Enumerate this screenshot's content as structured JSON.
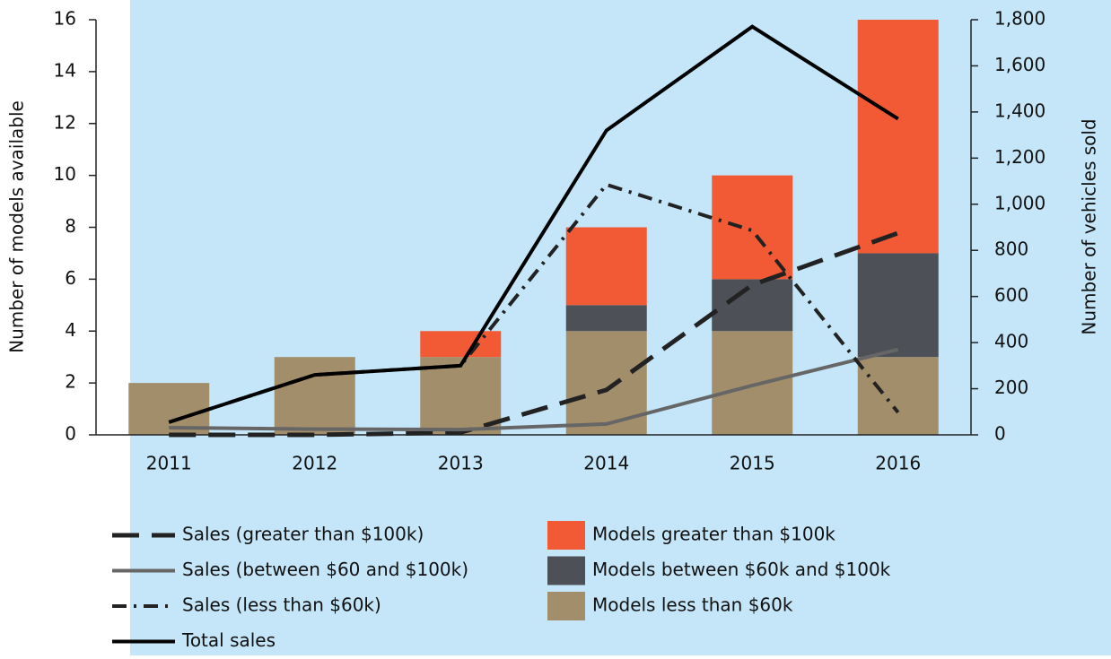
{
  "chart_data": {
    "type": "bar",
    "categories": [
      "2011",
      "2012",
      "2013",
      "2014",
      "2015",
      "2016"
    ],
    "y_label": "Number of models available",
    "y2_label": "Number of vehicles sold",
    "ylim": [
      0,
      16
    ],
    "yticks": [
      0,
      2,
      4,
      6,
      8,
      10,
      12,
      14,
      16
    ],
    "y2lim": [
      0,
      1800
    ],
    "y2ticks": [
      0,
      200,
      400,
      600,
      800,
      {
        "value": 1000,
        "label": "1,000"
      },
      {
        "value": 1200,
        "label": "1,200"
      },
      {
        "value": 1400,
        "label": "1,400"
      },
      {
        "value": 1600,
        "label": "1,600"
      },
      {
        "value": 1800,
        "label": "1,800"
      }
    ],
    "series": [
      {
        "name": "Sales (greater than $100k)",
        "type": "line",
        "axis": "y2",
        "color": "#222222",
        "dash": "dash",
        "values": [
          0,
          0,
          10,
          195,
          650,
          875
        ]
      },
      {
        "name": "Sales (between $60 and $100k)",
        "type": "line",
        "axis": "y2",
        "color": "#666666",
        "dash": "solid",
        "values": [
          31,
          25,
          23,
          47,
          214,
          370
        ]
      },
      {
        "name": "Sales (less than $60k)",
        "type": "line",
        "axis": "y2",
        "color": "#222222",
        "dash": "dashdot",
        "values": [
          55,
          260,
          300,
          1085,
          886,
          97
        ]
      },
      {
        "name": "Total sales",
        "type": "line",
        "axis": "y2",
        "color": "#000000",
        "dash": "solid",
        "values": [
          55,
          260,
          300,
          1320,
          1770,
          1370
        ]
      },
      {
        "name": "Models greater than $100k",
        "type": "bar",
        "color": "#f15a35",
        "values": [
          0,
          0,
          1,
          3,
          4,
          9
        ]
      },
      {
        "name": "Models between $60k and $100k",
        "type": "bar",
        "color": "#4d5157",
        "values": [
          0,
          0,
          0,
          1,
          2,
          4
        ]
      },
      {
        "name": "Models less than $60k",
        "type": "bar",
        "color": "#a38e6c",
        "values": [
          2,
          3,
          3,
          4,
          4,
          3
        ]
      }
    ]
  }
}
